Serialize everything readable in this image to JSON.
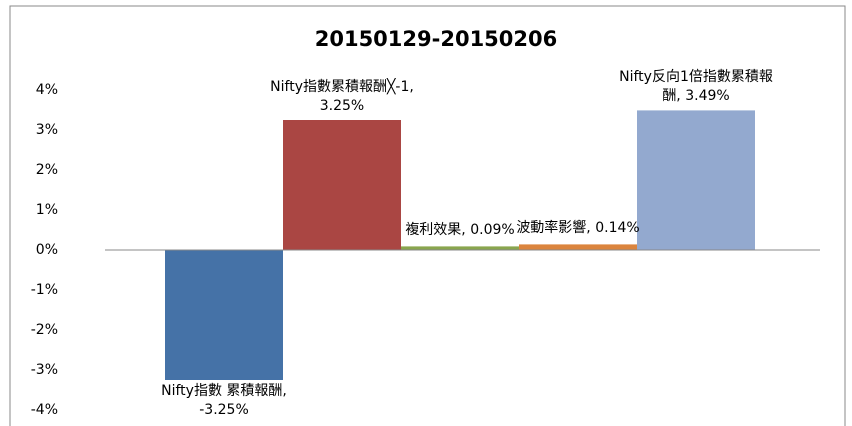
{
  "chart_data": {
    "type": "bar",
    "title": "20150129-20150206",
    "categories": [
      null,
      null,
      null,
      null,
      null
    ],
    "values": [
      -3.25,
      3.25,
      0.09,
      0.14,
      3.49
    ],
    "value_labels": [
      "Nifty指數 累積報酬, -3.25%",
      "Nifty指數累積報酬╳-1, 3.25%",
      "複利效果, 0.09%",
      "波動率影響, 0.14%",
      "Nifty反向1倍指數累積報酬, 3.49%"
    ],
    "colors": [
      "#4572a7",
      "#aa4643",
      "#89a54e",
      "#db843d",
      "#93a9cf"
    ],
    "ylim": [
      -4,
      4
    ],
    "yticks": [
      {
        "value": -4,
        "label": "-4%"
      },
      {
        "value": -3,
        "label": "-3%"
      },
      {
        "value": -2,
        "label": "-2%"
      },
      {
        "value": -1,
        "label": "-1%"
      },
      {
        "value": 0,
        "label": "0%"
      },
      {
        "value": 1,
        "label": "1%"
      },
      {
        "value": 2,
        "label": "2%"
      },
      {
        "value": 3,
        "label": "3%"
      },
      {
        "value": 4,
        "label": "4%"
      }
    ],
    "grid": false
  }
}
